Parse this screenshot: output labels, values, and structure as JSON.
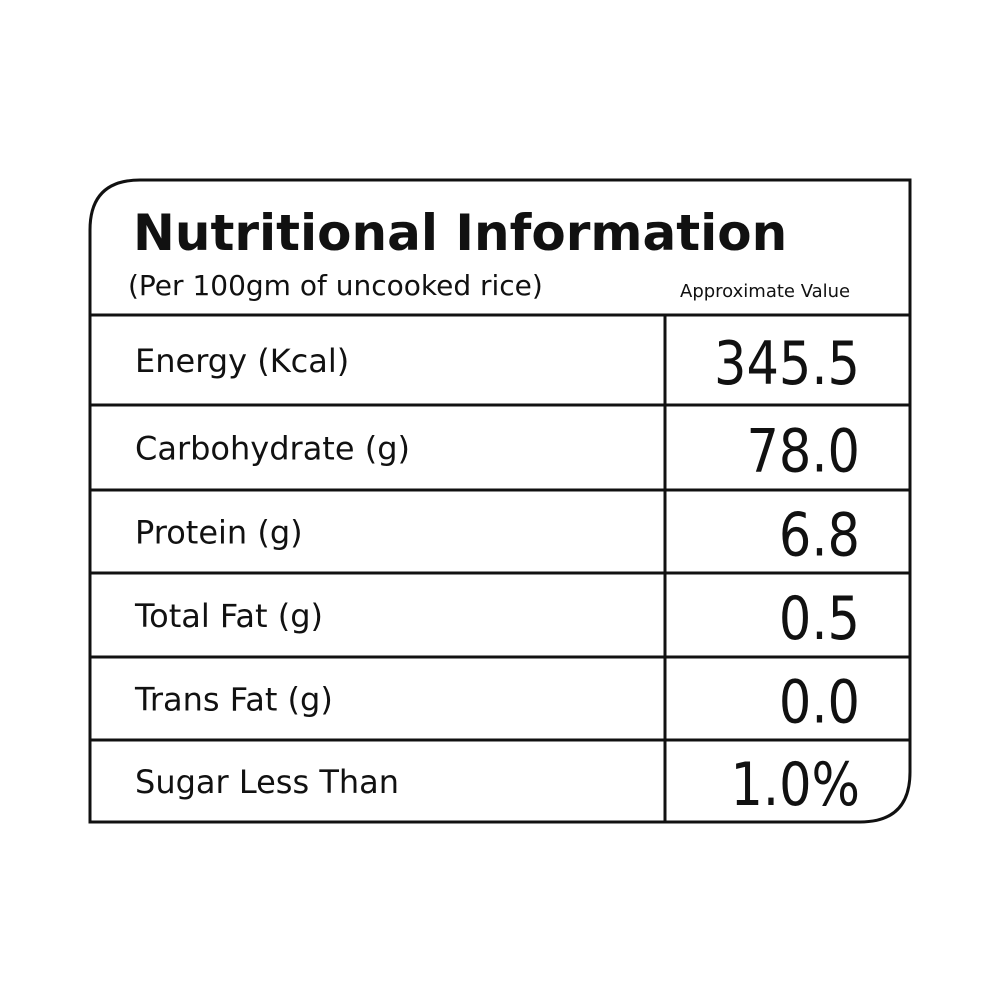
{
  "header": {
    "title": "Nutritional Information",
    "subtitle": "(Per 100gm of uncooked rice)",
    "note": "Approximate Value"
  },
  "table": {
    "rows": [
      [
        "Energy (Kcal)",
        "345.5"
      ],
      [
        "Carbohydrate (g)",
        "78.0"
      ],
      [
        "Protein (g)",
        "6.8"
      ],
      [
        "Total Fat (g)",
        "0.5"
      ],
      [
        "Trans Fat (g)",
        "0.0"
      ],
      [
        "Sugar Less Than",
        "1.0%"
      ]
    ]
  }
}
